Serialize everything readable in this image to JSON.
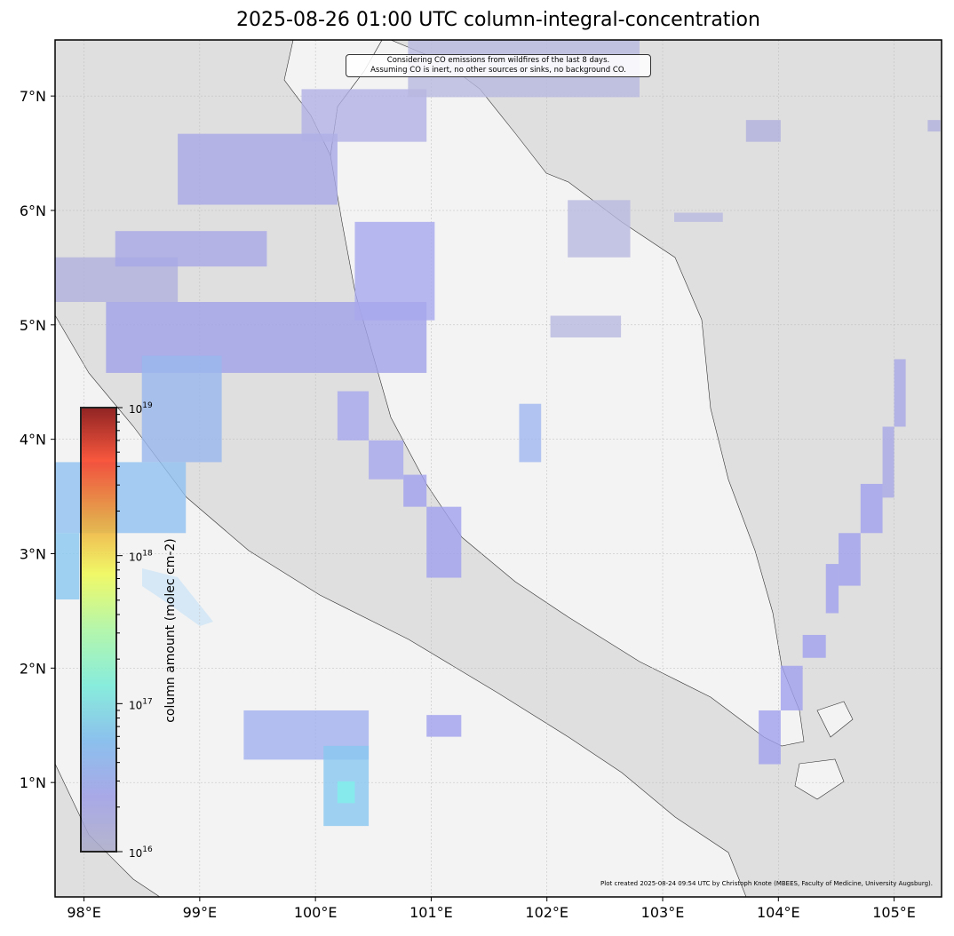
{
  "title": "2025-08-26 01:00 UTC column-integral-concentration",
  "annotation": [
    "Considering CO emissions from wildfires of the last 8 days.",
    "Assuming CO is inert, no other sources or sinks, no background CO."
  ],
  "credit": "Plot created 2025-08-24 09:54 UTC by Christoph Knote (MBEES, Faculty of Medicine, University Augsburg).",
  "map": {
    "lon_range": [
      97.75,
      105.41
    ],
    "lat_range": [
      0.0,
      7.49
    ],
    "lon_ticks": [
      {
        "v": 98,
        "label": "98°E"
      },
      {
        "v": 99,
        "label": "99°E"
      },
      {
        "v": 100,
        "label": "100°E"
      },
      {
        "v": 101,
        "label": "101°E"
      },
      {
        "v": 102,
        "label": "102°E"
      },
      {
        "v": 103,
        "label": "103°E"
      },
      {
        "v": 104,
        "label": "104°E"
      },
      {
        "v": 105,
        "label": "105°E"
      }
    ],
    "lat_ticks": [
      {
        "v": 1,
        "label": "1°N"
      },
      {
        "v": 2,
        "label": "2°N"
      },
      {
        "v": 3,
        "label": "3°N"
      },
      {
        "v": 4,
        "label": "4°N"
      },
      {
        "v": 5,
        "label": "5°N"
      },
      {
        "v": 6,
        "label": "6°N"
      },
      {
        "v": 7,
        "label": "7°N"
      }
    ],
    "colors": {
      "sea": "#dfdfdf",
      "land": "#f3f3f3",
      "coast": "#333333",
      "grid": "#bbbbbb"
    },
    "plume_cells": [
      {
        "lon": [
          97.75,
          98.81
        ],
        "lat": [
          5.2,
          5.59
        ],
        "color": "#b0b0dd"
      },
      {
        "lon": [
          98.27,
          99.58
        ],
        "lat": [
          5.51,
          5.82
        ],
        "color": "#a8a8e6"
      },
      {
        "lon": [
          98.81,
          100.19
        ],
        "lat": [
          6.05,
          6.67
        ],
        "color": "#a8a8e6"
      },
      {
        "lon": [
          98.19,
          100.96
        ],
        "lat": [
          4.58,
          5.2
        ],
        "color": "#a0a0e8"
      },
      {
        "lon": [
          99.88,
          100.96
        ],
        "lat": [
          6.6,
          7.06
        ],
        "color": "#b0b0e6"
      },
      {
        "lon": [
          100.34,
          101.03
        ],
        "lat": [
          5.04,
          5.9
        ],
        "color": "#a8a8ee"
      },
      {
        "lon": [
          98.5,
          99.19
        ],
        "lat": [
          3.8,
          4.73
        ],
        "color": "#98b8ee"
      },
      {
        "lon": [
          97.75,
          98.88
        ],
        "lat": [
          3.18,
          3.8
        ],
        "color": "#90c0f0"
      },
      {
        "lon": [
          97.75,
          97.96
        ],
        "lat": [
          2.6,
          3.18
        ],
        "color": "#88c8f0"
      },
      {
        "lon": [
          100.8,
          102.8
        ],
        "lat": [
          6.99,
          7.49
        ],
        "color": "#b8b8e0"
      },
      {
        "lon": [
          102.18,
          102.72
        ],
        "lat": [
          5.59,
          6.09
        ],
        "color": "#b8b8e0"
      },
      {
        "lon": [
          102.03,
          102.64
        ],
        "lat": [
          4.89,
          5.08
        ],
        "color": "#b8b8e0"
      },
      {
        "lon": [
          103.1,
          103.52
        ],
        "lat": [
          5.9,
          5.98
        ],
        "color": "#b8b8e0"
      },
      {
        "lon": [
          101.76,
          101.95
        ],
        "lat": [
          3.8,
          4.31
        ],
        "color": "#a0b8f0"
      },
      {
        "lon": [
          100.19,
          100.46
        ],
        "lat": [
          3.99,
          4.42
        ],
        "color": "#a8a8ee"
      },
      {
        "lon": [
          100.46,
          100.76
        ],
        "lat": [
          3.65,
          3.99
        ],
        "color": "#a8a8ee"
      },
      {
        "lon": [
          100.76,
          100.96
        ],
        "lat": [
          3.41,
          3.69
        ],
        "color": "#a0a0ee"
      },
      {
        "lon": [
          100.96,
          101.26
        ],
        "lat": [
          2.79,
          3.41
        ],
        "color": "#a0a0ee"
      },
      {
        "lon": [
          105.0,
          105.1
        ],
        "lat": [
          4.11,
          4.7
        ],
        "color": "#a8a8e6"
      },
      {
        "lon": [
          104.9,
          105.0
        ],
        "lat": [
          3.49,
          4.11
        ],
        "color": "#a8a8e6"
      },
      {
        "lon": [
          104.71,
          104.9
        ],
        "lat": [
          3.18,
          3.61
        ],
        "color": "#a0a0ee"
      },
      {
        "lon": [
          104.52,
          104.71
        ],
        "lat": [
          2.72,
          3.18
        ],
        "color": "#a0a0ee"
      },
      {
        "lon": [
          104.41,
          104.52
        ],
        "lat": [
          2.48,
          2.91
        ],
        "color": "#a0a0ee"
      },
      {
        "lon": [
          104.21,
          104.41
        ],
        "lat": [
          2.09,
          2.29
        ],
        "color": "#a0a0ee"
      },
      {
        "lon": [
          104.02,
          104.21
        ],
        "lat": [
          1.63,
          2.02
        ],
        "color": "#a0a0ee"
      },
      {
        "lon": [
          103.83,
          104.02
        ],
        "lat": [
          1.16,
          1.63
        ],
        "color": "#a0a0ee"
      },
      {
        "lon": [
          99.38,
          100.46
        ],
        "lat": [
          1.2,
          1.63
        ],
        "color": "#a0b0ee"
      },
      {
        "lon": [
          100.07,
          100.46
        ],
        "lat": [
          0.62,
          1.32
        ],
        "color": "#88c8f0"
      },
      {
        "lon": [
          100.19,
          100.34
        ],
        "lat": [
          0.82,
          1.01
        ],
        "color": "#80f0ec"
      },
      {
        "lon": [
          100.96,
          101.26
        ],
        "lat": [
          1.4,
          1.59
        ],
        "color": "#a0a0ee"
      },
      {
        "lon": [
          103.72,
          104.02
        ],
        "lat": [
          6.6,
          6.79
        ],
        "color": "#b0b0dd"
      },
      {
        "lon": [
          105.29,
          105.4
        ],
        "lat": [
          6.69,
          6.79
        ],
        "color": "#b0b0dd"
      }
    ]
  },
  "colorbar": {
    "label": "column amount (molec cm-2)",
    "scale": "log",
    "range": [
      1e+16,
      1e+19
    ],
    "ticks": [
      {
        "v": 16,
        "base": "10",
        "exp": "16"
      },
      {
        "v": 17,
        "base": "10",
        "exp": "17"
      },
      {
        "v": 18,
        "base": "10",
        "exp": "18"
      },
      {
        "v": 19,
        "base": "10",
        "exp": "19"
      }
    ],
    "colors": [
      "#ababc8",
      "#9c9ce6",
      "#7ab8ec",
      "#76ecd8",
      "#aaf7a0",
      "#f0fa50",
      "#f0a030",
      "#ff4020",
      "#800000"
    ]
  }
}
